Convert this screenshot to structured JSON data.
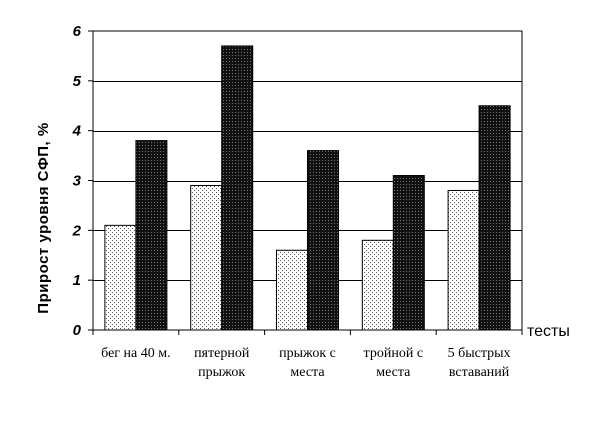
{
  "chart_data": {
    "type": "bar",
    "categories": [
      [
        "бег на 40 м."
      ],
      [
        "пятерной",
        "прыжок"
      ],
      [
        "прыжок с",
        "места"
      ],
      [
        "тройной с",
        "места"
      ],
      [
        "5 быстрых",
        "вставаний"
      ]
    ],
    "series": [
      {
        "values": [
          2.1,
          2.9,
          1.6,
          1.8,
          2.8
        ],
        "pattern": "dots",
        "color": "#ffffff"
      },
      {
        "values": [
          3.8,
          5.7,
          3.6,
          3.1,
          4.5
        ],
        "pattern": "dense-dark",
        "color": "#111111"
      }
    ],
    "ylabel": "Прирост уровня СФП, %",
    "xlabel": "тесты",
    "ylim": [
      0,
      6
    ],
    "yticks": [
      0,
      1,
      2,
      3,
      4,
      5,
      6
    ],
    "grid": true,
    "legend": "none"
  }
}
